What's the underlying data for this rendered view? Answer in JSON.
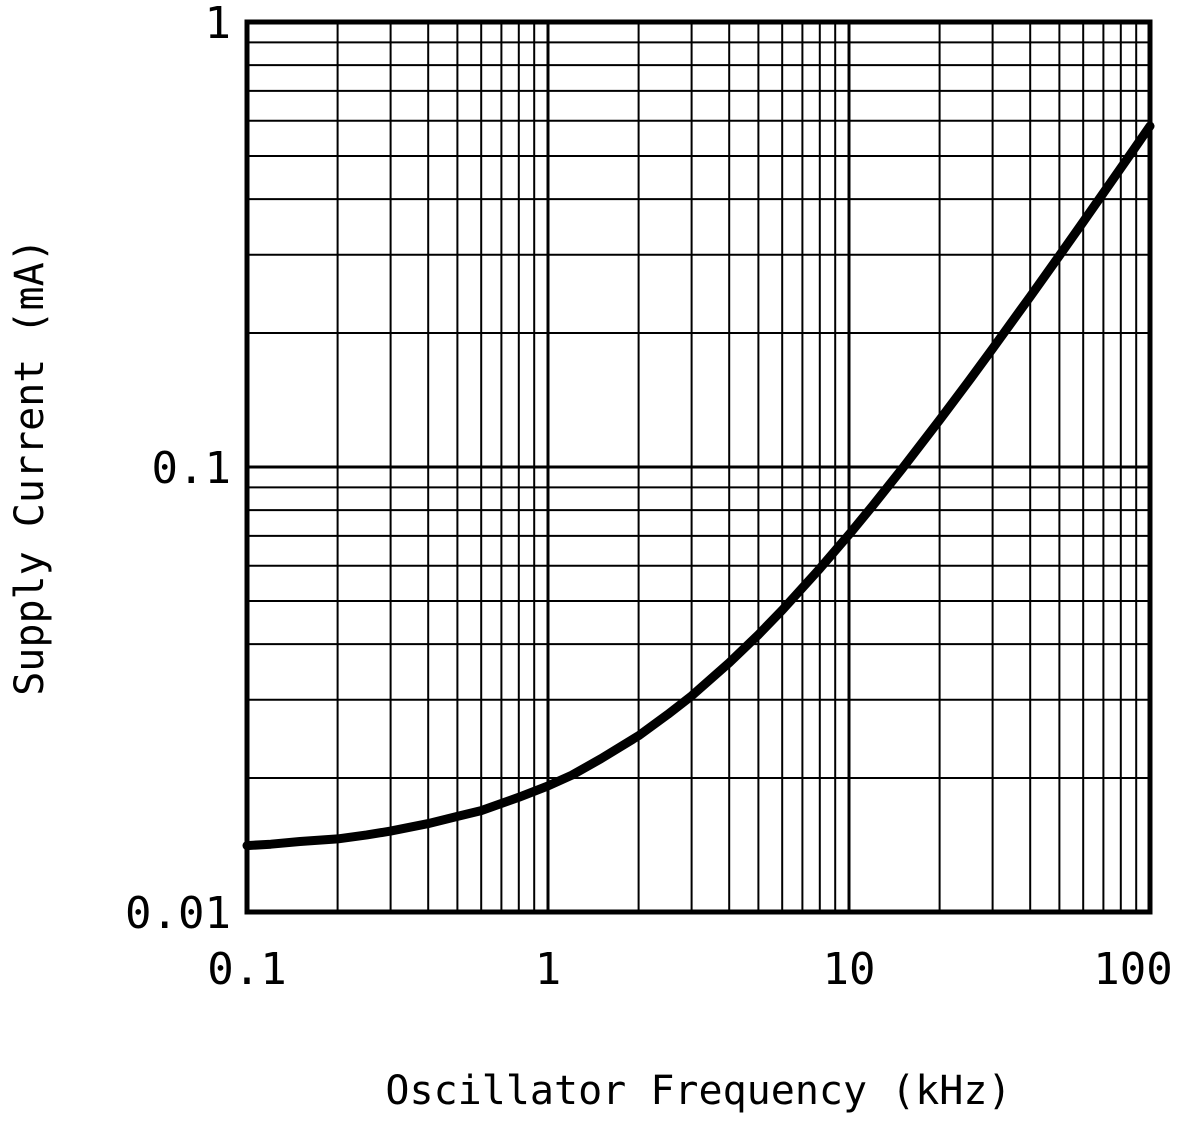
{
  "figure": {
    "background": "#ffffff",
    "grid_color": "#000000",
    "axis_color": "#000000",
    "line_color": "#000000"
  },
  "chart_data": {
    "type": "line",
    "title": "",
    "xlabel": "Oscillator Frequency (kHz)",
    "ylabel": "Supply Current (mA)",
    "x_scale": "log",
    "y_scale": "log",
    "xlim": [
      0.1,
      100
    ],
    "ylim": [
      0.01,
      1
    ],
    "x_ticks": [
      0.1,
      1,
      10,
      100
    ],
    "x_tick_labels": [
      "0.1",
      "1",
      "10",
      "100"
    ],
    "y_ticks": [
      0.01,
      0.1,
      1
    ],
    "y_tick_labels": [
      "0.01",
      "0.1",
      "1"
    ],
    "grid": "major-and-minor-both-axes",
    "legend": "none",
    "series": [
      {
        "name": "supply-current-vs-oscillator-frequency",
        "x": [
          0.1,
          0.12,
          0.15,
          0.2,
          0.25,
          0.3,
          0.4,
          0.5,
          0.6,
          0.8,
          1,
          1.2,
          1.5,
          2,
          2.5,
          3,
          4,
          5,
          6,
          8,
          10,
          12,
          15,
          20,
          25,
          30,
          40,
          50,
          60,
          80,
          100
        ],
        "y": [
          0.0141,
          0.0142,
          0.0144,
          0.0146,
          0.0149,
          0.0152,
          0.0158,
          0.0164,
          0.0169,
          0.0181,
          0.0192,
          0.0203,
          0.0221,
          0.0249,
          0.0278,
          0.0306,
          0.0363,
          0.042,
          0.0477,
          0.0591,
          0.0705,
          0.0819,
          0.099,
          0.1275,
          0.156,
          0.1845,
          0.2415,
          0.2985,
          0.3555,
          0.4695,
          0.5835
        ]
      }
    ]
  }
}
